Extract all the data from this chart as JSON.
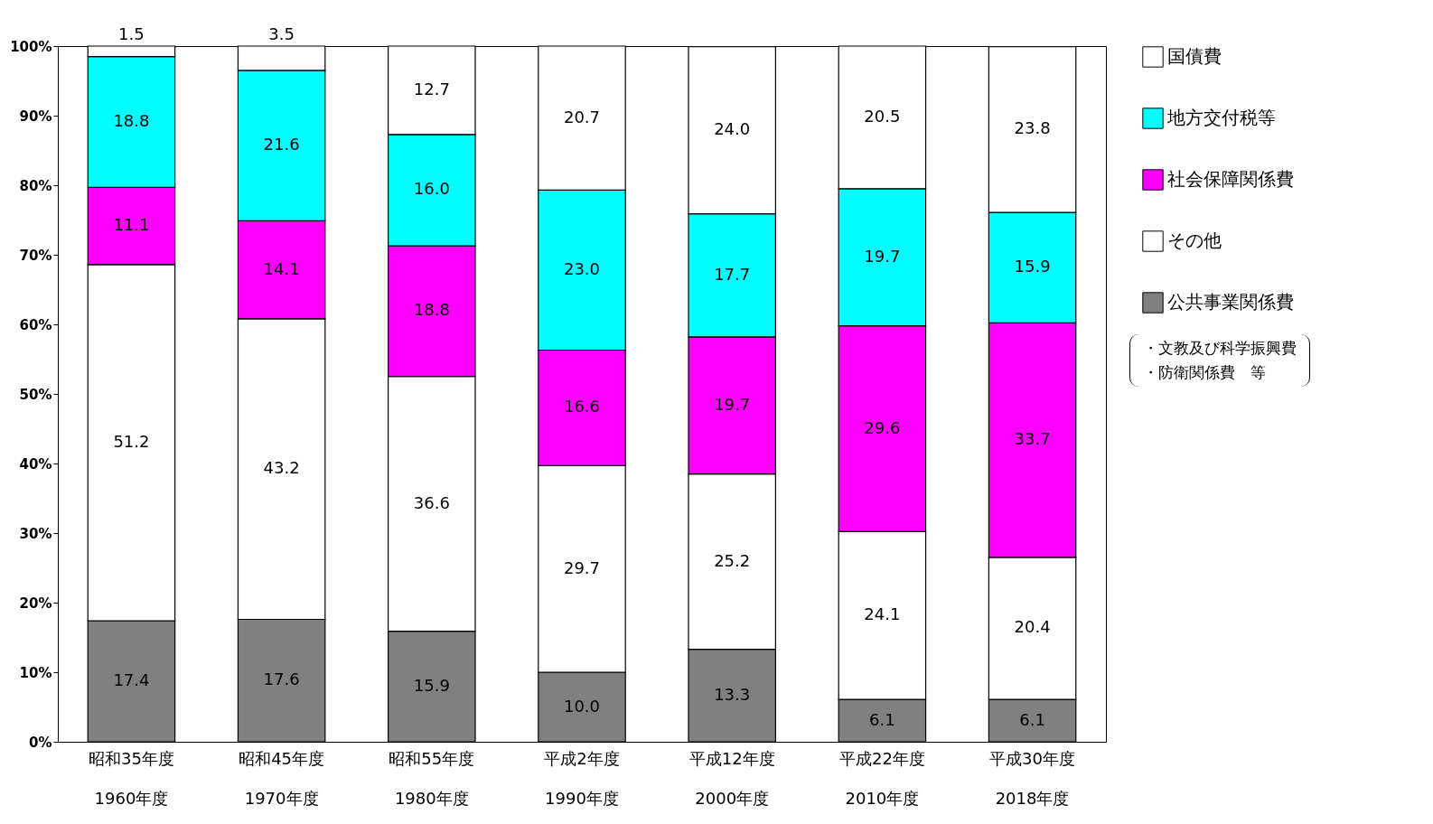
{
  "chart_data": {
    "type": "bar",
    "stacked": true,
    "categories": [
      "昭和35年度\n1960年度",
      "昭和45年度\n1970年度",
      "昭和55年度\n1980年度",
      "平成2年度\n1990年度",
      "平成12年度\n2000年度",
      "平成22年度\n2010年度",
      "平成30年度\n2018年度"
    ],
    "series": [
      {
        "name": "公共事業関係費",
        "color": "#808080",
        "values": [
          17.4,
          17.6,
          15.9,
          10.0,
          13.3,
          6.1,
          6.1
        ],
        "value_labels": [
          "17.4",
          "17.6",
          "15.9",
          "10.0",
          "13.3",
          "6.1",
          "6.1"
        ]
      },
      {
        "name": "その他",
        "color": "#ffffff",
        "values": [
          51.2,
          43.2,
          36.6,
          29.7,
          25.2,
          24.1,
          20.4
        ],
        "value_labels": [
          "51.2",
          "43.2",
          "36.6",
          "29.7",
          "25.2",
          "24.1",
          "20.4"
        ]
      },
      {
        "name": "社会保障関係費",
        "color": "#ff00ff",
        "values": [
          11.1,
          14.1,
          18.8,
          16.6,
          19.7,
          29.6,
          33.7
        ],
        "value_labels": [
          "11.1",
          "14.1",
          "18.8",
          "16.6",
          "19.7",
          "29.6",
          "33.7"
        ]
      },
      {
        "name": "地方交付税等",
        "color": "#00ffff",
        "values": [
          18.8,
          21.6,
          16.0,
          23.0,
          17.7,
          19.7,
          15.9
        ],
        "value_labels": [
          "18.8",
          "21.6",
          "16.0",
          "23.0",
          "17.7",
          "19.7",
          "15.9"
        ]
      },
      {
        "name": "国債費",
        "color": "#ffffff",
        "values": [
          1.5,
          3.5,
          12.7,
          20.7,
          24.0,
          20.5,
          23.8
        ],
        "value_labels": [
          "1.5",
          "3.5",
          "12.7",
          "20.7",
          "24.0",
          "20.5",
          "23.8"
        ]
      }
    ],
    "ylim": [
      0,
      100
    ],
    "yticks": [
      {
        "value": 0,
        "label": "0%"
      },
      {
        "value": 10,
        "label": "10%"
      },
      {
        "value": 20,
        "label": "20%"
      },
      {
        "value": 30,
        "label": "30%"
      },
      {
        "value": 40,
        "label": "40%"
      },
      {
        "value": 50,
        "label": "50%"
      },
      {
        "value": 60,
        "label": "60%"
      },
      {
        "value": 70,
        "label": "70%"
      },
      {
        "value": 80,
        "label": "80%"
      },
      {
        "value": 90,
        "label": "90%"
      },
      {
        "value": 100,
        "label": "100%"
      }
    ],
    "legend": "right",
    "annotations": [
      "・文教及び科学振興費",
      "・防衛関係費　等"
    ]
  }
}
